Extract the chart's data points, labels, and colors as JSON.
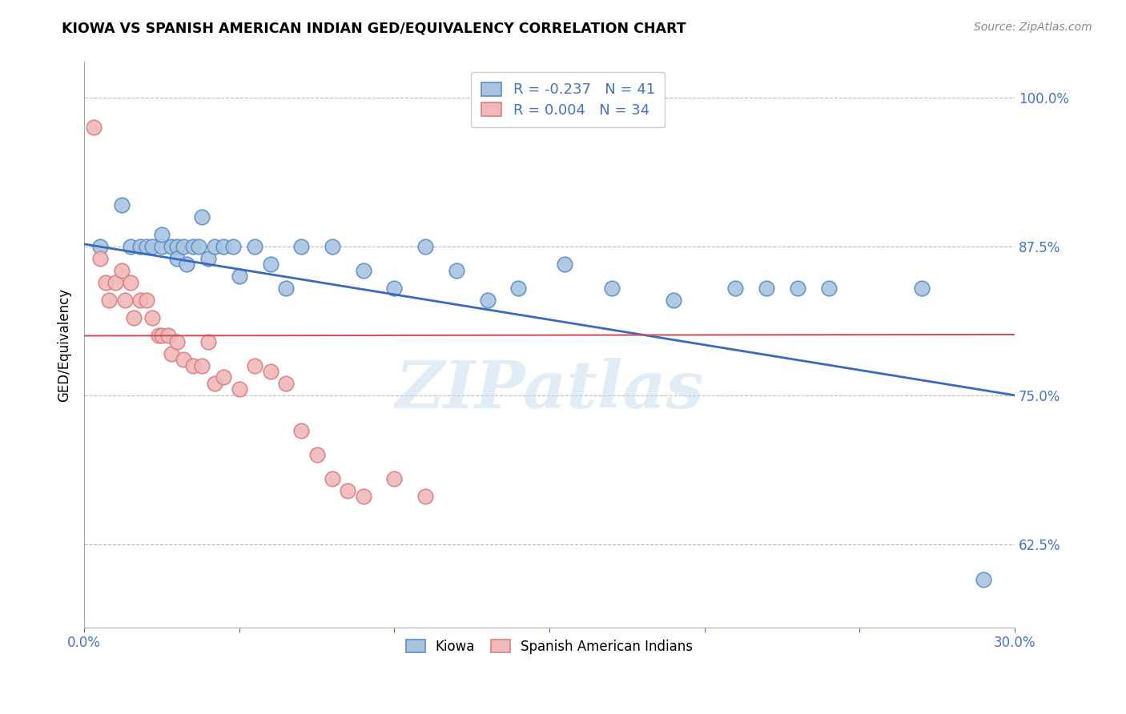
{
  "title": "KIOWA VS SPANISH AMERICAN INDIAN GED/EQUIVALENCY CORRELATION CHART",
  "source": "Source: ZipAtlas.com",
  "ylabel": "GED/Equivalency",
  "xlim": [
    0.0,
    0.3
  ],
  "ylim": [
    0.555,
    1.03
  ],
  "yticks": [
    0.625,
    0.75,
    0.875,
    1.0
  ],
  "ytick_labels": [
    "62.5%",
    "75.0%",
    "87.5%",
    "100.0%"
  ],
  "xticks": [
    0.0,
    0.05,
    0.1,
    0.15,
    0.2,
    0.25,
    0.3
  ],
  "xtick_labels": [
    "0.0%",
    "",
    "",
    "",
    "",
    "",
    "30.0%"
  ],
  "watermark": "ZIPatlas",
  "blue_edge": "#5b8fc9",
  "blue_face": "#aac4e0",
  "pink_edge": "#d98080",
  "pink_face": "#f0b8b8",
  "line_blue": "#3a6abf",
  "line_pink": "#cc5555",
  "legend_R_blue": "-0.237",
  "legend_N_blue": "41",
  "legend_R_pink": "0.004",
  "legend_N_pink": "34",
  "axis_color": "#4472c4",
  "grid_color": "#bbbbbb",
  "blue_scatter_x": [
    0.005,
    0.012,
    0.015,
    0.018,
    0.02,
    0.022,
    0.025,
    0.025,
    0.028,
    0.03,
    0.03,
    0.032,
    0.033,
    0.035,
    0.037,
    0.038,
    0.04,
    0.042,
    0.045,
    0.048,
    0.05,
    0.055,
    0.06,
    0.065,
    0.07,
    0.08,
    0.09,
    0.1,
    0.11,
    0.12,
    0.13,
    0.14,
    0.155,
    0.17,
    0.19,
    0.21,
    0.22,
    0.23,
    0.24,
    0.27,
    0.29
  ],
  "blue_scatter_y": [
    0.875,
    0.91,
    0.875,
    0.875,
    0.875,
    0.875,
    0.875,
    0.885,
    0.875,
    0.875,
    0.865,
    0.875,
    0.86,
    0.875,
    0.875,
    0.9,
    0.865,
    0.875,
    0.875,
    0.875,
    0.85,
    0.875,
    0.86,
    0.84,
    0.875,
    0.875,
    0.855,
    0.84,
    0.875,
    0.855,
    0.83,
    0.84,
    0.86,
    0.84,
    0.83,
    0.84,
    0.84,
    0.84,
    0.84,
    0.84,
    0.595
  ],
  "pink_scatter_x": [
    0.003,
    0.005,
    0.007,
    0.008,
    0.01,
    0.012,
    0.013,
    0.015,
    0.016,
    0.018,
    0.02,
    0.022,
    0.024,
    0.025,
    0.027,
    0.028,
    0.03,
    0.032,
    0.035,
    0.038,
    0.04,
    0.042,
    0.045,
    0.05,
    0.055,
    0.06,
    0.065,
    0.07,
    0.075,
    0.08,
    0.085,
    0.09,
    0.1,
    0.11
  ],
  "pink_scatter_y": [
    0.975,
    0.865,
    0.845,
    0.83,
    0.845,
    0.855,
    0.83,
    0.845,
    0.815,
    0.83,
    0.83,
    0.815,
    0.8,
    0.8,
    0.8,
    0.785,
    0.795,
    0.78,
    0.775,
    0.775,
    0.795,
    0.76,
    0.765,
    0.755,
    0.775,
    0.77,
    0.76,
    0.72,
    0.7,
    0.68,
    0.67,
    0.665,
    0.68,
    0.665
  ],
  "blue_line_x0": 0.0,
  "blue_line_x1": 0.3,
  "blue_line_y0": 0.877,
  "blue_line_y1": 0.75,
  "pink_line_x0": 0.0,
  "pink_line_x1": 0.3,
  "pink_line_y0": 0.8,
  "pink_line_y1": 0.801
}
